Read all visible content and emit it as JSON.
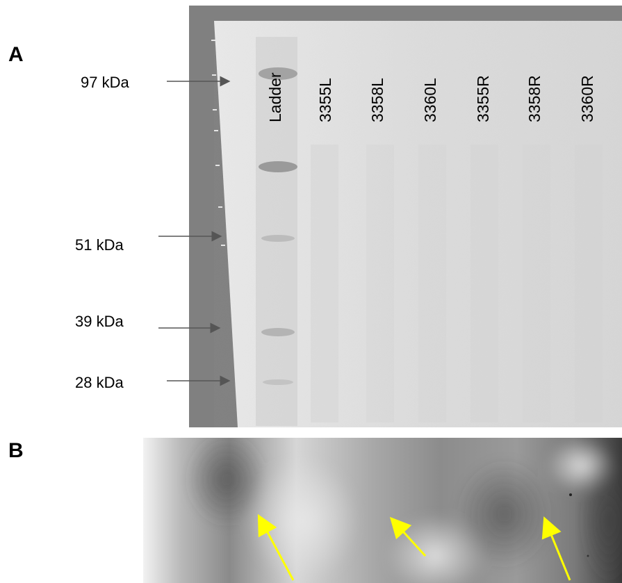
{
  "panel_a": {
    "letter": "A",
    "markers": [
      {
        "label": "97 kDa"
      },
      {
        "label": "51 kDa"
      },
      {
        "label": "39 kDa"
      },
      {
        "label": "28 kDa"
      }
    ],
    "lanes": [
      "Ladder",
      "3355L",
      "3358L",
      "3360L",
      "3355R",
      "3358R",
      "3360R"
    ]
  },
  "panel_b": {
    "letter": "B",
    "arrow_color": "#ffff00",
    "arrow_count": 3
  }
}
